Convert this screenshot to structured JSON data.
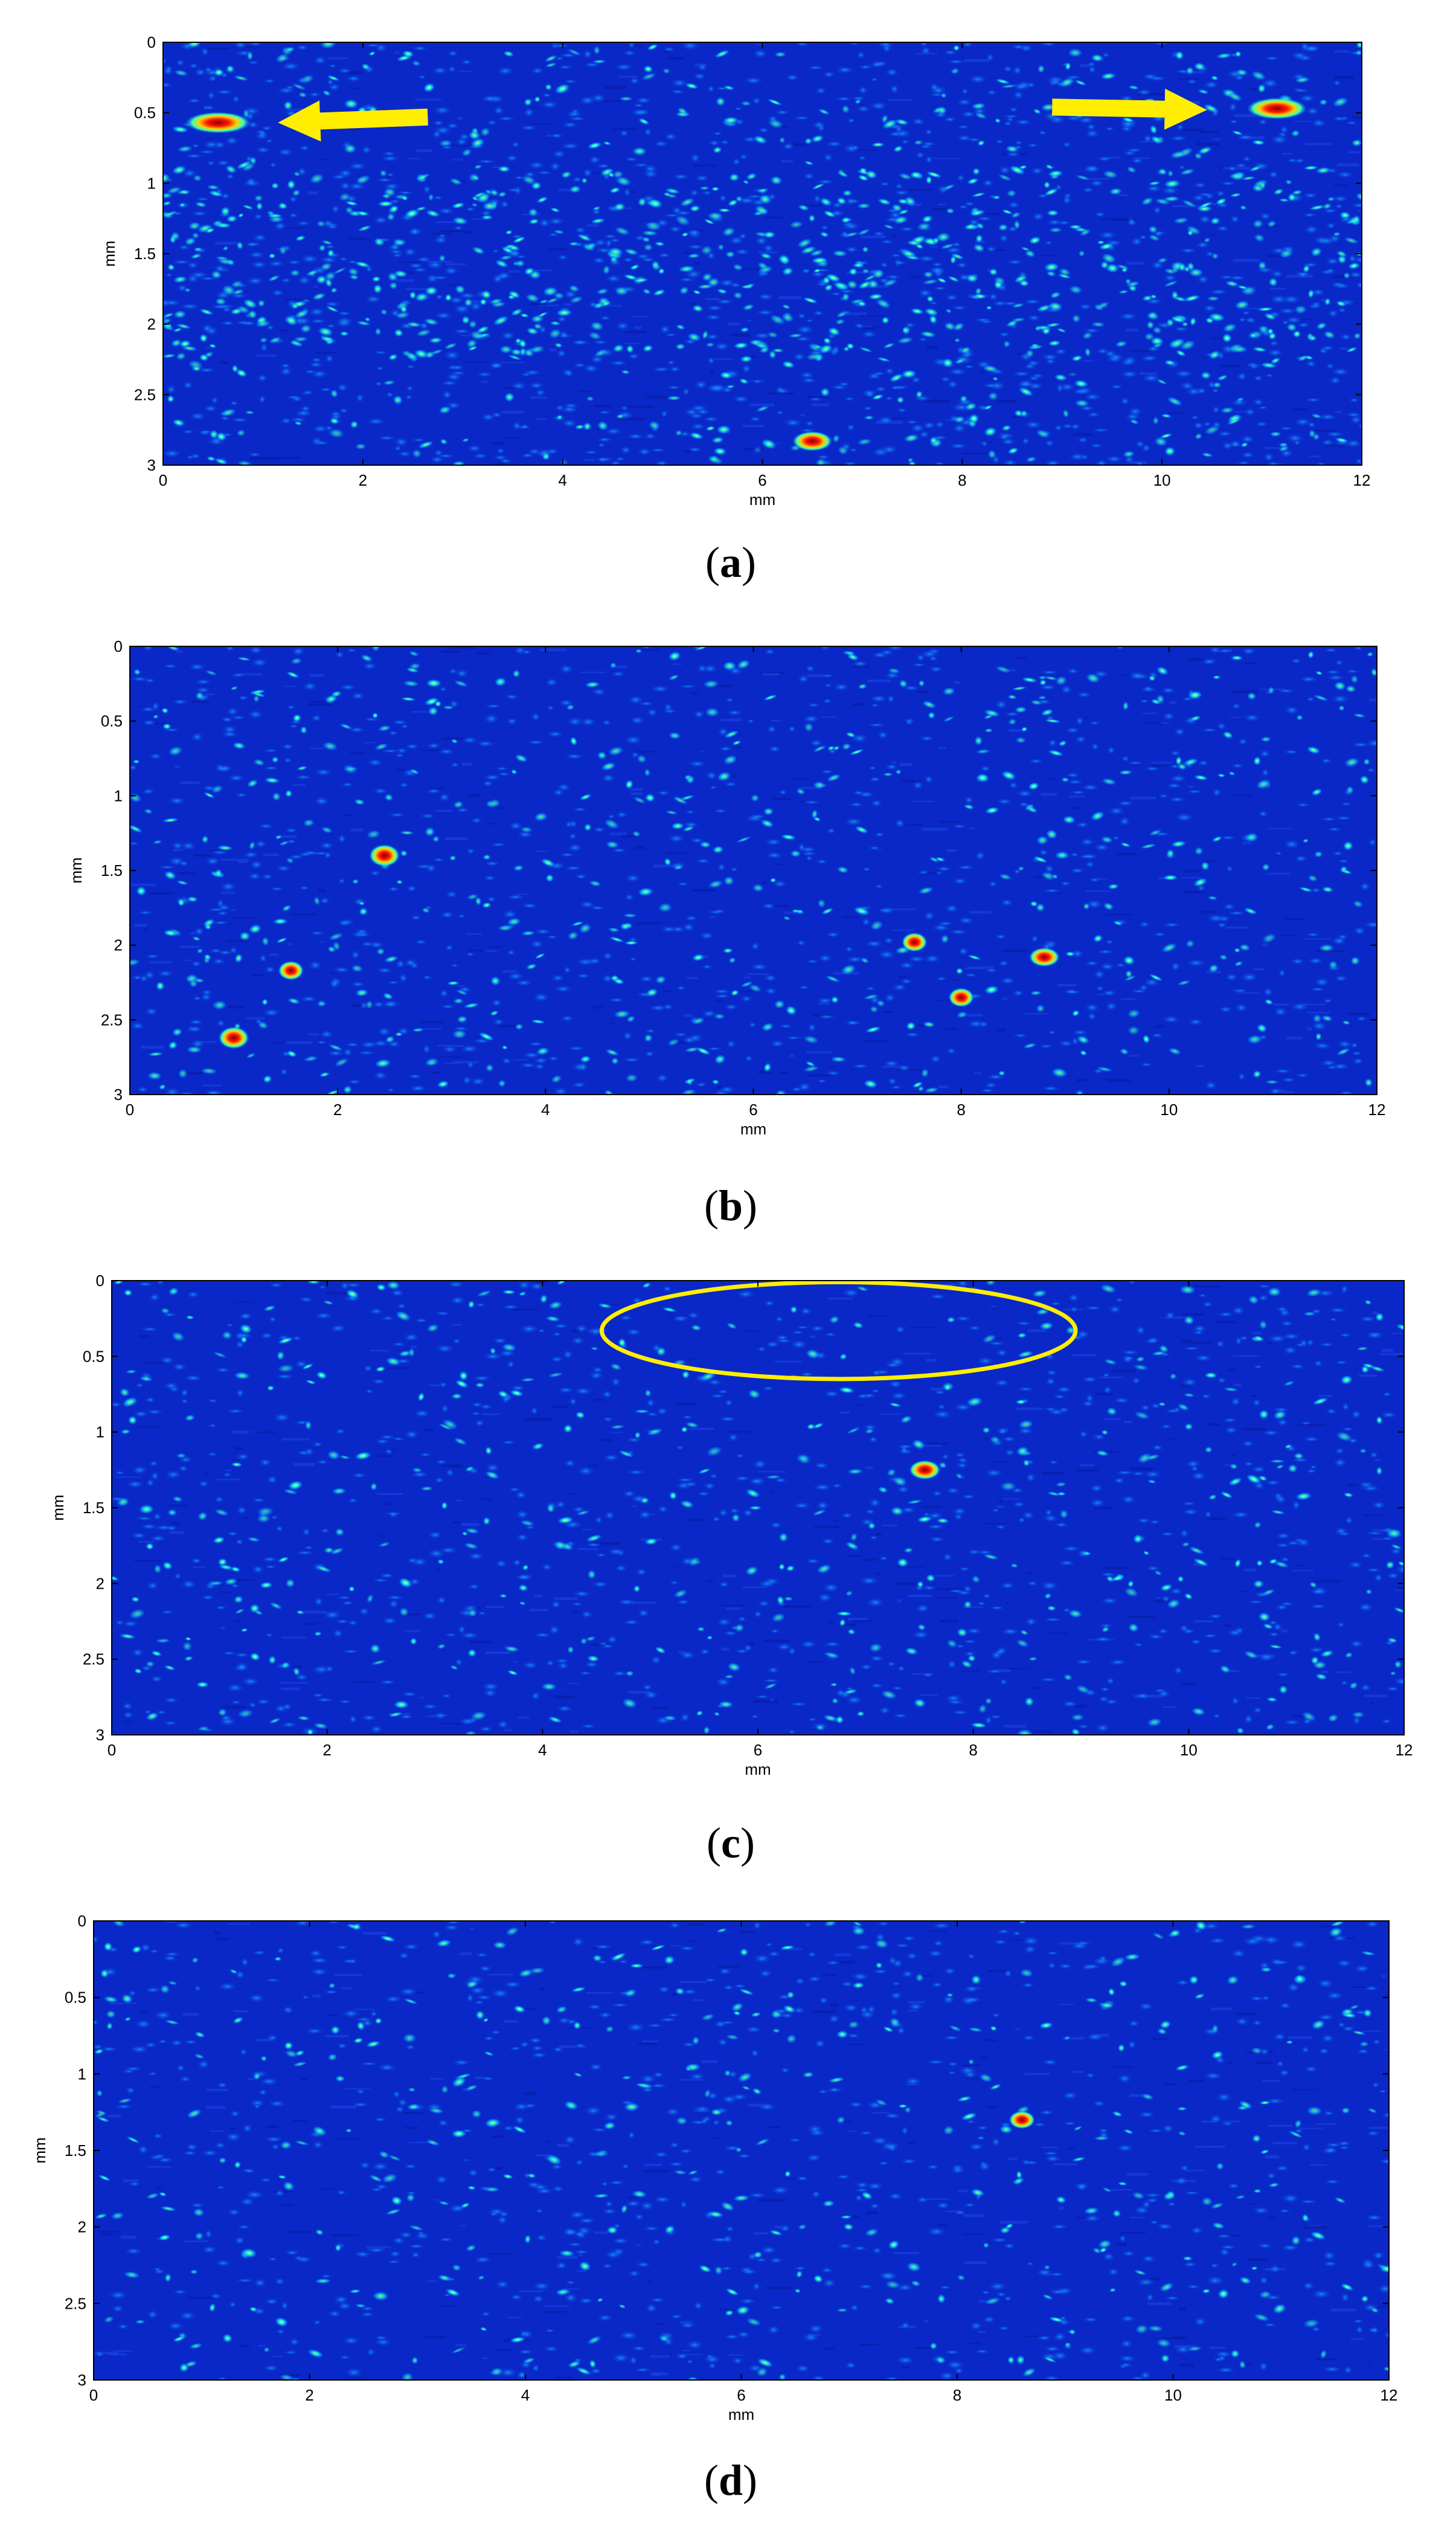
{
  "chart_data": [
    {
      "type": "heatmap",
      "panel": "a",
      "xlabel": "mm",
      "ylabel": "mm",
      "xlim": [
        0,
        12
      ],
      "ylim": [
        0,
        3
      ],
      "xticks": [
        "0",
        "2",
        "4",
        "6",
        "8",
        "10",
        "12"
      ],
      "yticks": [
        "0",
        "0.5",
        "1",
        "1.5",
        "2",
        "2.5",
        "3"
      ],
      "colormap": "jet",
      "background_color": "#0a28c8",
      "hot_spots": [
        {
          "x": 0.55,
          "y": 0.57,
          "w": 0.55,
          "h": 0.1
        },
        {
          "x": 11.15,
          "y": 0.47,
          "w": 0.5,
          "h": 0.1
        },
        {
          "x": 6.5,
          "y": 2.83,
          "w": 0.3,
          "h": 0.09
        }
      ],
      "annotations": [
        {
          "kind": "arrow",
          "direction": "left",
          "color": "#ffee00",
          "from": [
            2.65,
            0.53
          ],
          "to": [
            1.15,
            0.57
          ]
        },
        {
          "kind": "arrow",
          "direction": "right",
          "color": "#ffee00",
          "from": [
            8.9,
            0.46
          ],
          "to": [
            10.45,
            0.48
          ]
        }
      ]
    },
    {
      "type": "heatmap",
      "panel": "b",
      "xlabel": "mm",
      "ylabel": "mm",
      "xlim": [
        0,
        12
      ],
      "ylim": [
        0,
        3
      ],
      "xticks": [
        "0",
        "2",
        "4",
        "6",
        "8",
        "10",
        "12"
      ],
      "yticks": [
        "0",
        "0.5",
        "1",
        "1.5",
        "2",
        "2.5",
        "3"
      ],
      "colormap": "jet",
      "background_color": "#0a28c8",
      "hot_spots": [
        {
          "x": 2.45,
          "y": 1.4,
          "w": 0.2,
          "h": 0.1
        },
        {
          "x": 1.0,
          "y": 2.62,
          "w": 0.2,
          "h": 0.1
        },
        {
          "x": 1.55,
          "y": 2.17,
          "w": 0.15,
          "h": 0.08
        },
        {
          "x": 7.55,
          "y": 1.98,
          "w": 0.15,
          "h": 0.08
        },
        {
          "x": 8.8,
          "y": 2.08,
          "w": 0.2,
          "h": 0.08
        },
        {
          "x": 8.0,
          "y": 2.35,
          "w": 0.15,
          "h": 0.08
        }
      ],
      "annotations": []
    },
    {
      "type": "heatmap",
      "panel": "c",
      "xlabel": "mm",
      "ylabel": "mm",
      "xlim": [
        0,
        12
      ],
      "ylim": [
        0,
        3
      ],
      "xticks": [
        "0",
        "2",
        "4",
        "6",
        "8",
        "10",
        "12"
      ],
      "yticks": [
        "0",
        "0.5",
        "1",
        "1.5",
        "2",
        "2.5",
        "3"
      ],
      "colormap": "jet",
      "background_color": "#0a28c8",
      "hot_spots": [
        {
          "x": 7.55,
          "y": 1.25,
          "w": 0.2,
          "h": 0.08
        }
      ],
      "annotations": [
        {
          "kind": "ellipse",
          "color": "#ffee00",
          "cx": 6.75,
          "cy": 0.33,
          "rx": 2.2,
          "ry": 0.32
        }
      ]
    },
    {
      "type": "heatmap",
      "panel": "d",
      "xlabel": "mm",
      "ylabel": "mm",
      "xlim": [
        0,
        12
      ],
      "ylim": [
        0,
        3
      ],
      "xticks": [
        "0",
        "2",
        "4",
        "6",
        "8",
        "10",
        "12"
      ],
      "yticks": [
        "0",
        "0.5",
        "1",
        "1.5",
        "2",
        "2.5",
        "3"
      ],
      "colormap": "jet",
      "background_color": "#0a28c8",
      "hot_spots": [
        {
          "x": 8.6,
          "y": 1.3,
          "w": 0.15,
          "h": 0.07
        }
      ],
      "annotations": []
    }
  ],
  "panel_labels": [
    "(a)",
    "(b)",
    "(c)",
    "(d)"
  ]
}
